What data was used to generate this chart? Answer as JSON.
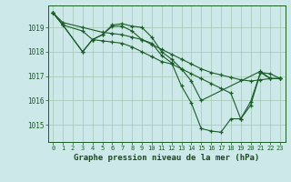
{
  "background_color": "#cce8e8",
  "grid_color": "#aaccbb",
  "line_color": "#1a5c28",
  "text_color": "#1a4a1a",
  "xlabel": "Graphe pression niveau de la mer (hPa)",
  "xlim": [
    -0.5,
    23.5
  ],
  "ylim": [
    1014.3,
    1019.9
  ],
  "yticks": [
    1015,
    1016,
    1017,
    1018,
    1019
  ],
  "xticks": [
    0,
    1,
    2,
    3,
    4,
    5,
    6,
    7,
    8,
    9,
    10,
    11,
    12,
    13,
    14,
    15,
    16,
    17,
    18,
    19,
    20,
    21,
    22,
    23
  ],
  "series1": [
    1019.6,
    1019.2,
    null,
    null,
    null,
    null,
    null,
    null,
    null,
    null,
    null,
    null,
    null,
    null,
    null,
    null,
    null,
    null,
    null,
    null,
    null,
    null,
    null,
    null
  ],
  "series": [
    [
      1019.6,
      1019.2,
      null,
      1019.0,
      null,
      null,
      null,
      null,
      null,
      null,
      null,
      null,
      null,
      null,
      null,
      null,
      null,
      null,
      null,
      null,
      null,
      null,
      null,
      null
    ],
    [
      1019.6,
      1019.1,
      null,
      1019.0,
      null,
      1018.85,
      1019.1,
      1019.15,
      null,
      null,
      1018.6,
      1018.35,
      null,
      null,
      1017.45,
      1016.6,
      null,
      null,
      null,
      null,
      null,
      null,
      null,
      null
    ],
    [
      1019.6,
      1019.1,
      null,
      1018.0,
      1018.5,
      1018.45,
      1018.4,
      1018.35,
      1018.2,
      1018.0,
      1017.8,
      1017.6,
      1017.5,
      1017.3,
      1017.1,
      1016.9,
      1016.7,
      1016.5,
      1016.3,
      1015.25,
      1015.8,
      1017.15,
      1017.1,
      1016.9
    ],
    [
      1019.6,
      1019.1,
      null,
      1018.0,
      1018.5,
      1018.7,
      1019.05,
      1019.05,
      1018.85,
      1018.5,
      1018.35,
      1017.85,
      1017.55,
      1016.6,
      1015.9,
      1014.85,
      1014.75,
      1014.7,
      1015.25,
      1015.25,
      1015.95,
      1017.15,
      1016.9,
      1016.9
    ]
  ],
  "line1": {
    "x": [
      0,
      1,
      3,
      5,
      6,
      7,
      8,
      9,
      10,
      11,
      12,
      13,
      14,
      15,
      16,
      17,
      18,
      19,
      20,
      21,
      22,
      23
    ],
    "y": [
      1019.6,
      1019.2,
      1019.0,
      1018.8,
      1018.75,
      1018.7,
      1018.6,
      1018.5,
      1018.3,
      1018.1,
      1017.9,
      1017.7,
      1017.5,
      1017.3,
      1017.15,
      1017.05,
      1016.95,
      1016.85,
      1016.8,
      1016.85,
      1016.9,
      1016.9
    ]
  },
  "line2": {
    "x": [
      0,
      1,
      3,
      4,
      5,
      6,
      7,
      8,
      9,
      10,
      11,
      12,
      13,
      14,
      15,
      21,
      22,
      23
    ],
    "y": [
      1019.6,
      1019.1,
      1018.85,
      1018.5,
      1018.7,
      1019.1,
      1019.15,
      1019.05,
      1019.0,
      1018.6,
      1018.0,
      1017.7,
      1017.3,
      1016.8,
      1016.0,
      1017.2,
      1016.9,
      1016.9
    ]
  },
  "line3": {
    "x": [
      0,
      1,
      3,
      4,
      5,
      6,
      7,
      8,
      9,
      10,
      11,
      12,
      13,
      14,
      15,
      16,
      17,
      18,
      19,
      20,
      21,
      22,
      23
    ],
    "y": [
      1019.6,
      1019.1,
      1018.0,
      1018.5,
      1018.45,
      1018.4,
      1018.35,
      1018.2,
      1018.0,
      1017.8,
      1017.6,
      1017.5,
      1017.3,
      1017.1,
      1016.9,
      1016.7,
      1016.5,
      1016.3,
      1015.25,
      1015.8,
      1017.15,
      1017.1,
      1016.9
    ]
  },
  "line4": {
    "x": [
      0,
      1,
      3,
      4,
      5,
      6,
      7,
      8,
      9,
      10,
      11,
      12,
      13,
      14,
      15,
      16,
      17,
      18,
      19,
      20,
      21,
      22,
      23
    ],
    "y": [
      1019.6,
      1019.1,
      1018.0,
      1018.5,
      1018.7,
      1019.05,
      1019.05,
      1018.85,
      1018.5,
      1018.35,
      1017.85,
      1017.55,
      1016.6,
      1015.9,
      1014.85,
      1014.75,
      1014.7,
      1015.25,
      1015.25,
      1015.95,
      1017.15,
      1016.9,
      1016.9
    ]
  },
  "marker_x1": [
    0,
    1,
    3,
    6,
    7,
    9,
    10,
    12,
    15,
    21,
    22,
    23
  ],
  "marker_x2": [
    0,
    1,
    3,
    5,
    6,
    7,
    10,
    11,
    14,
    21,
    22,
    23
  ],
  "marker_x3": [
    0,
    1,
    3,
    5,
    6,
    7,
    8,
    10,
    13,
    16,
    19,
    20,
    21,
    22,
    23
  ],
  "marker_x4": [
    0,
    1,
    3,
    5,
    6,
    7,
    9,
    12,
    13,
    14,
    15,
    16,
    17,
    18,
    19,
    20,
    21,
    22,
    23
  ]
}
